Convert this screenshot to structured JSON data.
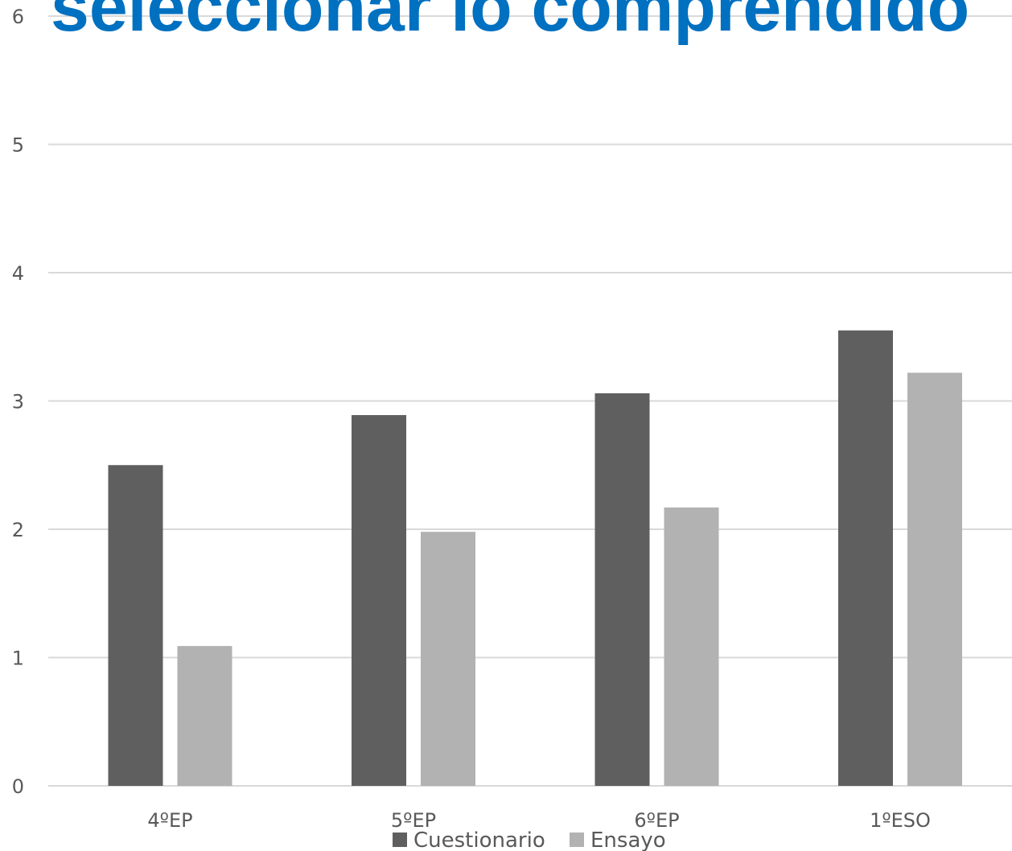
{
  "chart_data": {
    "type": "bar",
    "title": "seleccionar lo comprendido",
    "categories": [
      "4ºEP",
      "5ºEP",
      "6ºEP",
      "1ºESO"
    ],
    "series": [
      {
        "name": "Cuestionario",
        "values": [
          2.5,
          2.89,
          3.06,
          3.55
        ]
      },
      {
        "name": "Ensayo",
        "values": [
          1.09,
          1.98,
          2.17,
          3.22
        ]
      }
    ],
    "ylim": [
      0,
      6
    ],
    "yticks": [
      0,
      1,
      2,
      3,
      4,
      5,
      6
    ],
    "xlabel": "",
    "ylabel": "",
    "grid": true,
    "legend_position": "bottom",
    "colors": {
      "Cuestionario": "#5f5f5f",
      "Ensayo": "#b2b2b2",
      "title": "#0070c0",
      "grid": "#d9d9d9",
      "text": "#595959"
    }
  }
}
